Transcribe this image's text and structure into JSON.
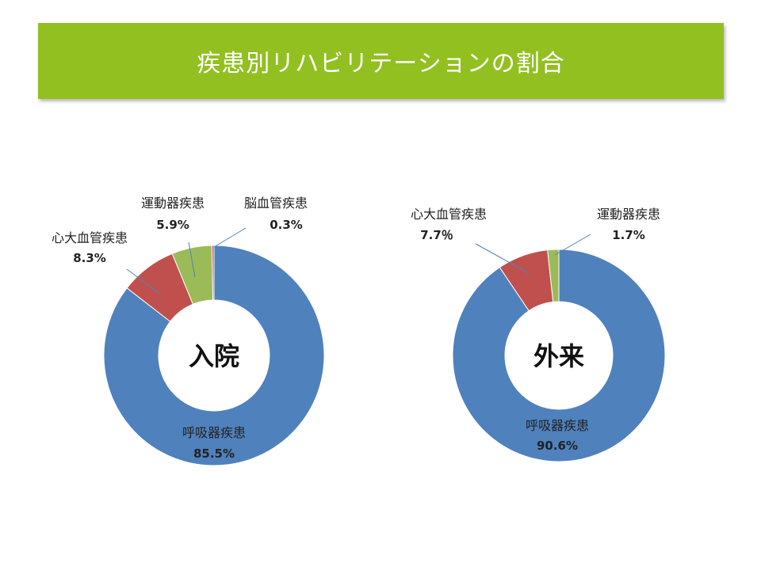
{
  "title": "疾患別リハビリテーションの割合",
  "colors": {
    "banner": "#92c020",
    "blue": "#4f81bd",
    "red": "#c0504d",
    "green": "#9bbb59",
    "purple": "#8064a2"
  },
  "chart_data": [
    {
      "type": "pie",
      "center_label": "入院",
      "slices": [
        {
          "label": "呼吸器疾患",
          "value": 85.5,
          "value_label": "85.5%",
          "color": "#4f81bd"
        },
        {
          "label": "心大血管疾患",
          "value": 8.3,
          "value_label": "8.3%",
          "color": "#c0504d"
        },
        {
          "label": "運動器疾患",
          "value": 5.9,
          "value_label": "5.9%",
          "color": "#9bbb59"
        },
        {
          "label": "脳血管疾患",
          "value": 0.3,
          "value_label": "0.3%",
          "color": "#c0504d"
        }
      ]
    },
    {
      "type": "pie",
      "center_label": "外来",
      "slices": [
        {
          "label": "呼吸器疾患",
          "value": 90.6,
          "value_label": "90.6%",
          "color": "#4f81bd"
        },
        {
          "label": "心大血管疾患",
          "value": 7.7,
          "value_label": "7.7％",
          "color": "#c0504d"
        },
        {
          "label": "運動器疾患",
          "value": 1.7,
          "value_label": "1.7%",
          "color": "#9bbb59"
        }
      ]
    }
  ]
}
